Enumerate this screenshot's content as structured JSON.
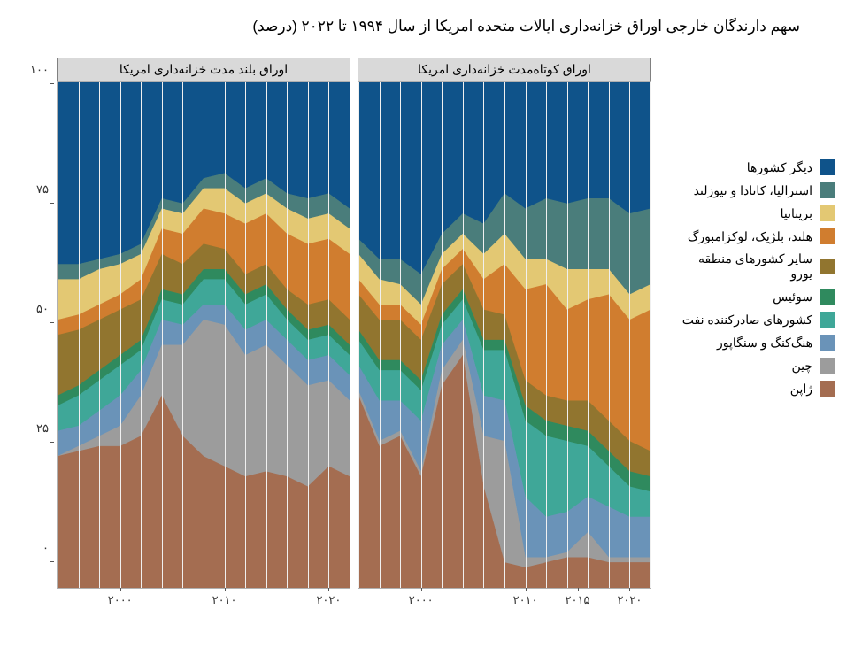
{
  "title": "سهم دارندگان خارجی اوراق خزانه‌داری ایالات متحده امریکا از سال ۱۹۹۴ تا ۲۰۲۲ (درصد)",
  "panels": {
    "short": {
      "header": "اوراق کوتاه‌مدت خزانه‌داری امریکا"
    },
    "long": {
      "header": "اوراق بلند مدت خزانه‌داری امریکا"
    }
  },
  "y_axis": {
    "min": 0,
    "max": 100,
    "ticks": [
      0,
      25,
      50,
      75,
      100
    ],
    "tick_labels": [
      "۰",
      "۲۵",
      "۵۰",
      "۷۵",
      "۱۰۰"
    ]
  },
  "x_axis": {
    "long": {
      "min": 1994,
      "max": 2022,
      "ticks": [
        2000,
        2010,
        2020
      ],
      "tick_labels": [
        "۲۰۰۰",
        "۲۰۱۰",
        "۲۰۲۰"
      ]
    },
    "short": {
      "min": 1994,
      "max": 2022,
      "ticks": [
        2000,
        2010,
        2015,
        2020
      ],
      "tick_labels": [
        "۲۰۰۰",
        "۲۰۱۰",
        "۲۰۱۵",
        "۲۰۲۰"
      ]
    }
  },
  "series_order": [
    "japan",
    "china",
    "hk_sg",
    "oil",
    "switzerland",
    "euro_other",
    "nl_be_lu",
    "uk",
    "aus_ca_nz",
    "other"
  ],
  "series_meta": {
    "other": {
      "label": "دیگر کشورها",
      "color": "#0f538a"
    },
    "aus_ca_nz": {
      "label": "استرالیا، کانادا و  نیوزلند",
      "color": "#4a7d7b"
    },
    "uk": {
      "label": "بریتانیا",
      "color": "#e3c873"
    },
    "nl_be_lu": {
      "label": "هلند، بلژیک، لوکزامبورگ",
      "color": "#d07d2f"
    },
    "euro_other": {
      "label": "سایر کشورهای منطقه یورو",
      "color": "#91752f"
    },
    "switzerland": {
      "label": "سوئیس",
      "color": "#2f8a5e"
    },
    "oil": {
      "label": "کشورهای صادرکننده نفت",
      "color": "#3fa798"
    },
    "hk_sg": {
      "label": "هنگ‌کنگ و سنگاپور",
      "color": "#6a93b8"
    },
    "china": {
      "label": "چین",
      "color": "#9c9c9c"
    },
    "japan": {
      "label": "ژاپن",
      "color": "#a46d51"
    }
  },
  "data": {
    "long": {
      "years": [
        1994,
        1996,
        1998,
        2000,
        2002,
        2004,
        2006,
        2008,
        2010,
        2012,
        2014,
        2016,
        2018,
        2020,
        2022
      ],
      "japan": [
        26,
        27,
        28,
        28,
        30,
        38,
        30,
        26,
        24,
        22,
        23,
        22,
        20,
        24,
        22
      ],
      "china": [
        0,
        1,
        2,
        4,
        8,
        10,
        18,
        27,
        28,
        24,
        25,
        22,
        20,
        17,
        15
      ],
      "hk_sg": [
        5,
        4,
        5,
        6,
        5,
        5,
        4,
        3,
        4,
        5,
        5,
        5,
        5,
        5,
        5
      ],
      "oil": [
        5,
        6,
        6,
        6,
        4,
        4,
        4,
        5,
        5,
        5,
        5,
        4,
        4,
        4,
        4
      ],
      "switzerland": [
        2,
        2,
        2,
        2,
        2,
        2,
        2,
        2,
        2,
        2,
        2,
        2,
        2,
        2,
        2
      ],
      "euro_other": [
        12,
        11,
        10,
        9,
        8,
        7,
        6,
        5,
        4,
        4,
        4,
        4,
        5,
        5,
        5
      ],
      "nl_be_lu": [
        3,
        3,
        3,
        3,
        4,
        5,
        6,
        7,
        7,
        10,
        10,
        11,
        12,
        12,
        13
      ],
      "uk": [
        8,
        7,
        7,
        6,
        5,
        4,
        4,
        4,
        5,
        4,
        4,
        5,
        5,
        5,
        5
      ],
      "aus_ca_nz": [
        3,
        3,
        2,
        2,
        2,
        2,
        2,
        2,
        3,
        3,
        3,
        3,
        4,
        4,
        4
      ],
      "other": [
        36,
        36,
        35,
        34,
        32,
        23,
        24,
        19,
        18,
        21,
        19,
        22,
        23,
        22,
        25
      ]
    },
    "short": {
      "years": [
        1994,
        1996,
        1998,
        2000,
        2002,
        2004,
        2006,
        2008,
        2010,
        2012,
        2014,
        2016,
        2018,
        2020,
        2022
      ],
      "japan": [
        38,
        28,
        30,
        22,
        40,
        46,
        20,
        5,
        4,
        5,
        6,
        6,
        5,
        5,
        5
      ],
      "china": [
        1,
        1,
        1,
        1,
        3,
        3,
        10,
        24,
        2,
        1,
        1,
        5,
        1,
        1,
        1
      ],
      "hk_sg": [
        5,
        8,
        6,
        10,
        5,
        4,
        8,
        8,
        12,
        8,
        8,
        7,
        10,
        8,
        8
      ],
      "oil": [
        5,
        6,
        6,
        6,
        4,
        4,
        9,
        10,
        15,
        16,
        14,
        10,
        8,
        6,
        5
      ],
      "switzerland": [
        2,
        2,
        2,
        2,
        2,
        2,
        2,
        2,
        3,
        3,
        3,
        3,
        3,
        3,
        3
      ],
      "euro_other": [
        7,
        8,
        8,
        8,
        6,
        5,
        6,
        5,
        5,
        5,
        5,
        6,
        6,
        6,
        5
      ],
      "nl_be_lu": [
        3,
        3,
        3,
        3,
        3,
        3,
        6,
        10,
        18,
        22,
        18,
        20,
        25,
        24,
        28
      ],
      "uk": [
        5,
        5,
        4,
        4,
        3,
        3,
        5,
        6,
        6,
        5,
        8,
        6,
        5,
        5,
        5
      ],
      "aus_ca_nz": [
        3,
        4,
        5,
        6,
        4,
        4,
        6,
        8,
        10,
        12,
        13,
        14,
        14,
        16,
        15
      ],
      "other": [
        31,
        35,
        35,
        38,
        30,
        26,
        28,
        22,
        25,
        23,
        24,
        23,
        23,
        26,
        25
      ]
    }
  },
  "style": {
    "background": "#ffffff",
    "panel_header_bg": "#d9d9d9",
    "panel_border": "#808080",
    "grid_color": "#f0f0f0",
    "title_fontsize": 17,
    "label_fontsize": 14,
    "tick_fontsize": 13
  }
}
